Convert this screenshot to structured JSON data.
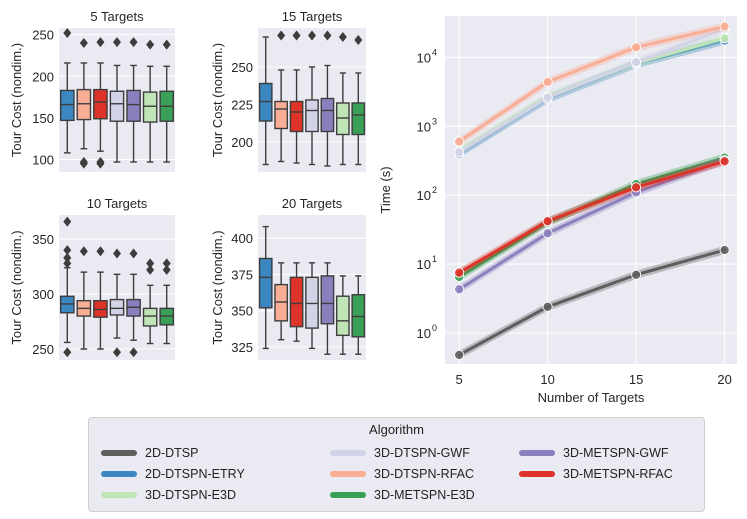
{
  "chart_data": [
    {
      "type": "box",
      "title": "5 Targets",
      "ylabel": "Tour Cost (nondim.)",
      "ylim": [
        85,
        258
      ],
      "yticks": [
        100,
        150,
        200,
        250
      ],
      "boxes": [
        {
          "algorithm": "2D-DTSPN-ETRY",
          "whislo": 108,
          "q1": 147,
          "med": 166,
          "q3": 183,
          "whishi": 216,
          "fliers": [
            252
          ]
        },
        {
          "algorithm": "3D-DTSPN-RFAC",
          "whislo": 113,
          "q1": 148,
          "med": 167,
          "q3": 184,
          "whishi": 216,
          "fliers": [
            240,
            97,
            95
          ]
        },
        {
          "algorithm": "3D-METSPN-RFAC",
          "whislo": 110,
          "q1": 149,
          "med": 169,
          "q3": 184,
          "whishi": 216,
          "fliers": [
            241,
            97,
            95
          ]
        },
        {
          "algorithm": "3D-DTSPN-GWF",
          "whislo": 97,
          "q1": 146,
          "med": 167,
          "q3": 182,
          "whishi": 213,
          "fliers": [
            241
          ]
        },
        {
          "algorithm": "3D-METSPN-GWF",
          "whislo": 97,
          "q1": 146,
          "med": 166,
          "q3": 183,
          "whishi": 213,
          "fliers": [
            241
          ]
        },
        {
          "algorithm": "3D-DTSPN-E3D",
          "whislo": 97,
          "q1": 145,
          "med": 164,
          "q3": 181,
          "whishi": 212,
          "fliers": [
            238
          ]
        },
        {
          "algorithm": "3D-METSPN-E3D",
          "whislo": 97,
          "q1": 146,
          "med": 164,
          "q3": 182,
          "whishi": 212,
          "fliers": [
            238
          ]
        }
      ]
    },
    {
      "type": "box",
      "title": "15 Targets",
      "ylabel": "Tour Cost (nondim.)",
      "ylim": [
        180,
        276
      ],
      "yticks": [
        200,
        225,
        250
      ],
      "boxes": [
        {
          "algorithm": "2D-DTSPN-ETRY",
          "whislo": 185,
          "q1": 214,
          "med": 227,
          "q3": 239,
          "whishi": 270,
          "fliers": []
        },
        {
          "algorithm": "3D-DTSPN-RFAC",
          "whislo": 187,
          "q1": 209,
          "med": 222,
          "q3": 227,
          "whishi": 248,
          "fliers": [
            271
          ]
        },
        {
          "algorithm": "3D-METSPN-RFAC",
          "whislo": 186,
          "q1": 207,
          "med": 220,
          "q3": 227,
          "whishi": 248,
          "fliers": [
            271
          ]
        },
        {
          "algorithm": "3D-DTSPN-GWF",
          "whislo": 185,
          "q1": 207,
          "med": 221,
          "q3": 228,
          "whishi": 250,
          "fliers": [
            271
          ]
        },
        {
          "algorithm": "3D-METSPN-GWF",
          "whislo": 184,
          "q1": 207,
          "med": 221,
          "q3": 229,
          "whishi": 251,
          "fliers": [
            271
          ]
        },
        {
          "algorithm": "3D-DTSPN-E3D",
          "whislo": 185,
          "q1": 205,
          "med": 216,
          "q3": 226,
          "whishi": 246,
          "fliers": [
            270
          ]
        },
        {
          "algorithm": "3D-METSPN-E3D",
          "whislo": 185,
          "q1": 205,
          "med": 218,
          "q3": 226,
          "whishi": 246,
          "fliers": [
            268
          ]
        }
      ]
    },
    {
      "type": "box",
      "title": "10 Targets",
      "ylabel": "Tour Cost (nondim.)",
      "ylim": [
        240,
        372
      ],
      "yticks": [
        250,
        300,
        350
      ],
      "boxes": [
        {
          "algorithm": "2D-DTSPN-ETRY",
          "whislo": 256,
          "q1": 283,
          "med": 291,
          "q3": 298,
          "whishi": 324,
          "fliers": [
            366,
            340,
            328,
            333,
            247
          ]
        },
        {
          "algorithm": "3D-DTSPN-RFAC",
          "whislo": 250,
          "q1": 280,
          "med": 287,
          "q3": 294,
          "whishi": 320,
          "fliers": [
            339
          ]
        },
        {
          "algorithm": "3D-METSPN-RFAC",
          "whislo": 250,
          "q1": 279,
          "med": 286,
          "q3": 294,
          "whishi": 320,
          "fliers": [
            339
          ]
        },
        {
          "algorithm": "3D-DTSPN-GWF",
          "whislo": 260,
          "q1": 281,
          "med": 287,
          "q3": 295,
          "whishi": 318,
          "fliers": [
            337,
            247
          ]
        },
        {
          "algorithm": "3D-METSPN-GWF",
          "whislo": 258,
          "q1": 280,
          "med": 288,
          "q3": 295,
          "whishi": 318,
          "fliers": [
            337,
            247
          ]
        },
        {
          "algorithm": "3D-DTSPN-E3D",
          "whislo": 255,
          "q1": 271,
          "med": 280,
          "q3": 287,
          "whishi": 308,
          "fliers": [
            328,
            322
          ]
        },
        {
          "algorithm": "3D-METSPN-E3D",
          "whislo": 255,
          "q1": 272,
          "med": 280,
          "q3": 287,
          "whishi": 308,
          "fliers": [
            328,
            322
          ]
        }
      ]
    },
    {
      "type": "box",
      "title": "20 Targets",
      "ylabel": "Tour Cost (nondim.)",
      "ylim": [
        316,
        416
      ],
      "yticks": [
        325,
        350,
        375,
        400
      ],
      "boxes": [
        {
          "algorithm": "2D-DTSPN-ETRY",
          "whislo": 324,
          "q1": 352,
          "med": 373,
          "q3": 386,
          "whishi": 408,
          "fliers": []
        },
        {
          "algorithm": "3D-DTSPN-RFAC",
          "whislo": 330,
          "q1": 343,
          "med": 356,
          "q3": 368,
          "whishi": 383,
          "fliers": []
        },
        {
          "algorithm": "3D-METSPN-RFAC",
          "whislo": 329,
          "q1": 339,
          "med": 355,
          "q3": 373,
          "whishi": 383,
          "fliers": []
        },
        {
          "algorithm": "3D-DTSPN-GWF",
          "whislo": 324,
          "q1": 338,
          "med": 355,
          "q3": 373,
          "whishi": 383,
          "fliers": []
        },
        {
          "algorithm": "3D-METSPN-GWF",
          "whislo": 320,
          "q1": 341,
          "med": 355,
          "q3": 374,
          "whishi": 383,
          "fliers": []
        },
        {
          "algorithm": "3D-DTSPN-E3D",
          "whislo": 320,
          "q1": 333,
          "med": 343,
          "q3": 360,
          "whishi": 374,
          "fliers": []
        },
        {
          "algorithm": "3D-METSPN-E3D",
          "whislo": 320,
          "q1": 332,
          "med": 346,
          "q3": 361,
          "whishi": 374,
          "fliers": []
        }
      ]
    },
    {
      "type": "line",
      "yscale": "log",
      "xlabel": "Number of Targets",
      "ylabel": "Time (s)",
      "x": [
        5,
        10,
        15,
        20
      ],
      "xlim": [
        4.2,
        20.7
      ],
      "ylim_log10": [
        -0.45,
        4.6
      ],
      "ytick_labels": [
        "10",
        "10",
        "10",
        "10",
        "10"
      ],
      "ytick_exponents": [
        "0",
        "1",
        "2",
        "3",
        "4"
      ],
      "ytick_values": [
        1,
        10,
        100,
        1000,
        10000
      ],
      "series": [
        {
          "name": "2D-DTSP",
          "values": [
            0.48,
            2.4,
            7.0,
            16
          ]
        },
        {
          "name": "2D-DTSPN-ETRY",
          "values": [
            400,
            2500,
            8000,
            17500
          ]
        },
        {
          "name": "3D-DTSPN-E3D",
          "values": [
            440,
            2700,
            8200,
            19000
          ]
        },
        {
          "name": "3D-DTSPN-GWF",
          "values": [
            420,
            2600,
            8500,
            26000
          ]
        },
        {
          "name": "3D-DTSPN-RFAC",
          "values": [
            600,
            4400,
            14000,
            28000
          ]
        },
        {
          "name": "3D-METSPN-E3D",
          "values": [
            6.5,
            40,
            145,
            350
          ]
        },
        {
          "name": "3D-METSPN-GWF",
          "values": [
            4.3,
            28,
            110,
            320
          ]
        },
        {
          "name": "3D-METSPN-RFAC",
          "values": [
            7.5,
            42,
            130,
            310
          ]
        }
      ]
    }
  ],
  "series_colors": {
    "2D-DTSP": "#5e5e5e",
    "2D-DTSPN-ETRY": "#3b87c1",
    "3D-DTSPN-E3D": "#bfe4b6",
    "3D-DTSPN-GWF": "#d3d3e7",
    "3D-DTSPN-RFAC": "#f8ad95",
    "3D-METSPN-E3D": "#3aa057",
    "3D-METSPN-GWF": "#8c7fbe",
    "3D-METSPN-RFAC": "#dd3329"
  },
  "legend": {
    "title": "Algorithm",
    "items": [
      "2D-DTSP",
      "3D-DTSPN-GWF",
      "3D-METSPN-GWF",
      "2D-DTSPN-ETRY",
      "3D-DTSPN-RFAC",
      "3D-METSPN-RFAC",
      "3D-DTSPN-E3D",
      "3D-METSPN-E3D"
    ]
  }
}
